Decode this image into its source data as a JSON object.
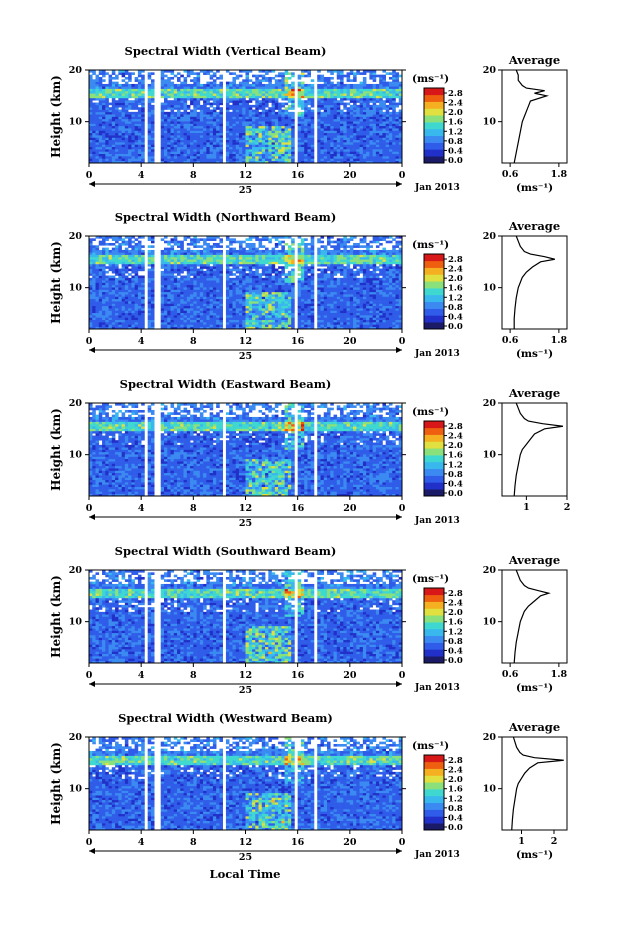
{
  "figure": {
    "x_axis_label": "Local Time",
    "date_label": "Jan 2013",
    "day_label": "25",
    "unit_label": "(ms⁻¹)",
    "average_title": "Average",
    "y_axis_label": "Height (km)"
  },
  "colorscale": [
    "#1a1a66",
    "#2030c8",
    "#2f5ce8",
    "#3a8af2",
    "#39b8ee",
    "#3ed8d0",
    "#8ae07a",
    "#e0e040",
    "#f4b020",
    "#ee6010",
    "#d81818"
  ],
  "gap_color": "#ffffff",
  "chart_data": [
    {
      "type": "heatmap",
      "title": "Spectral Width (Vertical Beam)",
      "ylabel": "Height (km)",
      "xlim": [
        0,
        24
      ],
      "ylim": [
        2,
        20
      ],
      "x_ticks": [
        "0",
        "4",
        "8",
        "12",
        "16",
        "20",
        "0"
      ],
      "y_ticks": [
        "10",
        "20"
      ],
      "colorbar_label": "(ms⁻¹)",
      "colorbar_ticks": [
        "0.0",
        "0.4",
        "0.8",
        "1.2",
        "1.6",
        "2.0",
        "2.4",
        "2.8"
      ],
      "data_gaps_hours": [
        [
          4.2,
          4.6
        ],
        [
          5.0,
          5.4
        ],
        [
          10.2,
          10.5
        ],
        [
          15.8,
          16.1
        ],
        [
          17.3,
          17.6
        ]
      ],
      "profile": {
        "title": "Average",
        "xlabel": "(ms⁻¹)",
        "x_ticks": [
          "0.6",
          "1.8"
        ],
        "y_ticks": [
          "10",
          "20"
        ],
        "xlim": [
          0.4,
          2.0
        ],
        "height_km": [
          2,
          4,
          6,
          8,
          10,
          11,
          12,
          13,
          14,
          15,
          15.5,
          16,
          16.5,
          17,
          18,
          19,
          20
        ],
        "width_ms": [
          0.7,
          0.75,
          0.8,
          0.85,
          0.9,
          0.95,
          1.0,
          1.05,
          1.1,
          1.5,
          1.2,
          1.45,
          1.0,
          0.9,
          0.8,
          0.8,
          0.75
        ]
      }
    },
    {
      "type": "heatmap",
      "title": "Spectral Width (Northward Beam)",
      "ylabel": "Height (km)",
      "xlim": [
        0,
        24
      ],
      "ylim": [
        2,
        20
      ],
      "x_ticks": [
        "0",
        "4",
        "8",
        "12",
        "16",
        "20",
        "0"
      ],
      "y_ticks": [
        "10",
        "20"
      ],
      "colorbar_label": "(ms⁻¹)",
      "colorbar_ticks": [
        "0.0",
        "0.4",
        "0.8",
        "1.2",
        "1.6",
        "2.0",
        "2.4",
        "2.8"
      ],
      "data_gaps_hours": [
        [
          4.2,
          4.6
        ],
        [
          5.0,
          5.4
        ],
        [
          10.2,
          10.5
        ],
        [
          15.8,
          16.1
        ],
        [
          17.3,
          17.6
        ]
      ],
      "profile": {
        "title": "Average",
        "xlabel": "(ms⁻¹)",
        "x_ticks": [
          "0.6",
          "1.8"
        ],
        "y_ticks": [
          "10",
          "20"
        ],
        "xlim": [
          0.4,
          2.0
        ],
        "height_km": [
          2,
          4,
          6,
          8,
          10,
          11,
          12,
          13,
          14,
          15,
          15.5,
          16,
          16.5,
          17,
          18,
          19,
          20
        ],
        "width_ms": [
          0.7,
          0.7,
          0.72,
          0.75,
          0.8,
          0.85,
          0.9,
          1.0,
          1.15,
          1.35,
          1.7,
          1.45,
          1.1,
          0.95,
          0.85,
          0.8,
          0.75
        ]
      }
    },
    {
      "type": "heatmap",
      "title": "Spectral Width (Eastward Beam)",
      "ylabel": "Height (km)",
      "xlim": [
        0,
        24
      ],
      "ylim": [
        2,
        20
      ],
      "x_ticks": [
        "0",
        "4",
        "8",
        "12",
        "16",
        "20",
        "0"
      ],
      "y_ticks": [
        "10",
        "20"
      ],
      "colorbar_label": "(ms⁻¹)",
      "colorbar_ticks": [
        "0.0",
        "0.4",
        "0.8",
        "1.2",
        "1.6",
        "2.0",
        "2.4",
        "2.8"
      ],
      "data_gaps_hours": [
        [
          4.2,
          4.6
        ],
        [
          5.0,
          5.4
        ],
        [
          10.2,
          10.5
        ],
        [
          15.8,
          16.1
        ],
        [
          17.3,
          17.6
        ]
      ],
      "profile": {
        "title": "Average",
        "xlabel": "",
        "x_ticks": [
          "1",
          "2"
        ],
        "y_ticks": [
          "10",
          "20"
        ],
        "xlim": [
          0.4,
          2.0
        ],
        "height_km": [
          2,
          4,
          6,
          8,
          10,
          11,
          12,
          13,
          14,
          15,
          15.5,
          16,
          16.5,
          17,
          18,
          19,
          20
        ],
        "width_ms": [
          0.7,
          0.72,
          0.75,
          0.8,
          0.85,
          0.9,
          1.0,
          1.1,
          1.2,
          1.45,
          1.9,
          1.4,
          1.05,
          0.95,
          0.85,
          0.8,
          0.75
        ]
      }
    },
    {
      "type": "heatmap",
      "title": "Spectral Width (Southward Beam)",
      "ylabel": "Height (km)",
      "xlim": [
        0,
        24
      ],
      "ylim": [
        2,
        20
      ],
      "x_ticks": [
        "0",
        "4",
        "8",
        "12",
        "16",
        "20",
        "0"
      ],
      "y_ticks": [
        "10",
        "20"
      ],
      "colorbar_label": "(ms⁻¹)",
      "colorbar_ticks": [
        "0.0",
        "0.4",
        "0.8",
        "1.2",
        "1.6",
        "2.0",
        "2.4",
        "2.8"
      ],
      "data_gaps_hours": [
        [
          4.2,
          4.6
        ],
        [
          5.0,
          5.4
        ],
        [
          10.2,
          10.5
        ],
        [
          15.8,
          16.1
        ],
        [
          17.3,
          17.6
        ]
      ],
      "profile": {
        "title": "Average",
        "xlabel": "(ms⁻¹)",
        "x_ticks": [
          "0.6",
          "1.8"
        ],
        "y_ticks": [
          "10",
          "20"
        ],
        "xlim": [
          0.4,
          2.0
        ],
        "height_km": [
          2,
          4,
          6,
          8,
          10,
          11,
          12,
          13,
          14,
          15,
          15.5,
          16,
          16.5,
          17,
          18,
          19,
          20
        ],
        "width_ms": [
          0.7,
          0.72,
          0.75,
          0.8,
          0.85,
          0.9,
          0.95,
          1.05,
          1.2,
          1.35,
          1.55,
          1.3,
          1.05,
          0.95,
          0.85,
          0.8,
          0.75
        ]
      }
    },
    {
      "type": "heatmap",
      "title": "Spectral Width (Westward Beam)",
      "ylabel": "Height (km)",
      "xlim": [
        0,
        24
      ],
      "ylim": [
        2,
        20
      ],
      "x_ticks": [
        "0",
        "4",
        "8",
        "12",
        "16",
        "20",
        "0"
      ],
      "y_ticks": [
        "10",
        "20"
      ],
      "colorbar_label": "(ms⁻¹)",
      "colorbar_ticks": [
        "0.0",
        "0.4",
        "0.8",
        "1.2",
        "1.6",
        "2.0",
        "2.4",
        "2.8"
      ],
      "data_gaps_hours": [
        [
          4.2,
          4.6
        ],
        [
          5.0,
          5.4
        ],
        [
          10.2,
          10.5
        ],
        [
          15.8,
          16.1
        ],
        [
          17.3,
          17.6
        ]
      ],
      "profile": {
        "title": "Average",
        "xlabel": "(ms⁻¹)",
        "x_ticks": [
          "1",
          "2"
        ],
        "y_ticks": [
          "10",
          "20"
        ],
        "xlim": [
          0.4,
          2.4
        ],
        "height_km": [
          2,
          4,
          6,
          8,
          10,
          11,
          12,
          13,
          14,
          15,
          15.5,
          16,
          16.5,
          17,
          18,
          19,
          20
        ],
        "width_ms": [
          0.7,
          0.72,
          0.75,
          0.8,
          0.85,
          0.9,
          1.0,
          1.1,
          1.25,
          1.5,
          2.3,
          1.4,
          1.05,
          0.95,
          0.85,
          0.8,
          0.75
        ]
      }
    }
  ]
}
